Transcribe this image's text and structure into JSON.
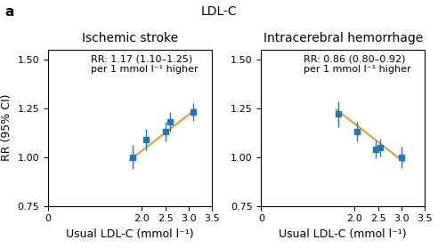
{
  "panel_label": "a",
  "subtitle": "LDL-C",
  "chart_data": [
    {
      "type": "scatter",
      "title": "Ischemic stroke",
      "y_label": "RR (95% CI)",
      "x_label": "Usual LDL-C (mmol l⁻¹)",
      "x": [
        1.8,
        2.1,
        2.5,
        2.6,
        3.1
      ],
      "values": [
        1.0,
        1.09,
        1.13,
        1.18,
        1.23
      ],
      "yerr_lo": [
        0.06,
        0.055,
        0.05,
        0.05,
        0.045
      ],
      "yerr_hi": [
        0.06,
        0.055,
        0.05,
        0.05,
        0.045
      ],
      "marker": "s",
      "fit_x": [
        1.75,
        3.15
      ],
      "fit_y": [
        0.985,
        1.245
      ],
      "annotation": "RR: 1.17 (1.10–1.25)\nper 1 mmol l⁻¹ higher",
      "xlim": [
        0,
        3.5
      ],
      "xticks": [
        0,
        {
          "value": 2.0,
          "label": "2.0"
        },
        2.5,
        {
          "value": 3.0,
          "label": "3.0"
        },
        3.5
      ],
      "ylim": [
        0.75,
        1.55
      ],
      "yticks": [
        0.75,
        {
          "value": 1.0,
          "label": "1.00"
        },
        1.25,
        {
          "value": 1.5,
          "label": "1.50"
        }
      ]
    },
    {
      "type": "scatter",
      "title": "Intracerebral hemorrhage",
      "x_label": "Usual LDL-C (mmol l⁻¹)",
      "x": [
        1.65,
        2.05,
        2.45,
        2.55,
        3.0
      ],
      "values": [
        1.22,
        1.13,
        1.04,
        1.05,
        1.0
      ],
      "yerr_lo": [
        0.065,
        0.05,
        0.045,
        0.045,
        0.055
      ],
      "yerr_hi": [
        0.065,
        0.05,
        0.045,
        0.045,
        0.055
      ],
      "marker": "s",
      "fit_x": [
        1.6,
        3.05
      ],
      "fit_y": [
        1.245,
        0.975
      ],
      "annotation": "RR: 0.86 (0.80–0.92)\nper 1 mmol l⁻¹ higher",
      "xlim": [
        0,
        3.5
      ],
      "xticks": [
        0,
        {
          "value": 2.0,
          "label": "2.0"
        },
        2.5,
        {
          "value": 3.0,
          "label": "3.0"
        },
        3.5
      ],
      "ylim": [
        0.75,
        1.55
      ],
      "yticks": [
        0.75,
        {
          "value": 1.0,
          "label": "1.00"
        },
        1.25,
        {
          "value": 1.5,
          "label": "1.50"
        }
      ]
    }
  ]
}
